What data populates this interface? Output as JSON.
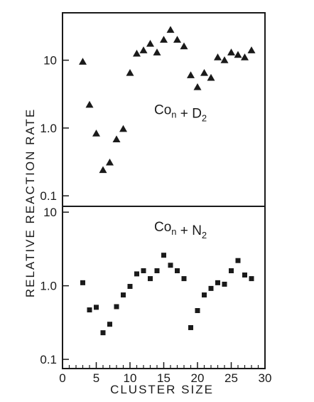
{
  "chart_data": {
    "type": "scatter",
    "ylabel": "RELATIVE REACTION RATE",
    "xlabel": "CLUSTER SIZE",
    "xlim": [
      0,
      30
    ],
    "x_ticks": [
      "0",
      "5",
      "10",
      "15",
      "20",
      "25",
      "30"
    ],
    "panels": [
      {
        "annotation": {
          "base": "Co",
          "sub": "n",
          "op": "+",
          "reactant": "D",
          "reactant_sub": "2"
        },
        "marker": "triangle",
        "color": "#1a1a1a",
        "yscale": "log",
        "ylim": [
          0.07,
          50
        ],
        "y_ticks": [
          "0.1",
          "1.0",
          "10"
        ],
        "x": [
          3,
          4,
          5,
          6,
          7,
          8,
          9,
          10,
          11,
          12,
          13,
          14,
          15,
          16,
          17,
          18,
          19,
          20,
          21,
          22,
          23,
          24,
          25,
          26,
          27,
          28
        ],
        "y": [
          9.5,
          2.2,
          0.83,
          0.24,
          0.31,
          0.68,
          0.97,
          6.5,
          12.5,
          14,
          17.5,
          13,
          20,
          28,
          20,
          16,
          6,
          4,
          6.5,
          5.5,
          11,
          10,
          13,
          12,
          11,
          14
        ]
      },
      {
        "annotation": {
          "base": "Co",
          "sub": "n",
          "op": "+",
          "reactant": "N",
          "reactant_sub": "2"
        },
        "marker": "square",
        "color": "#1a1a1a",
        "yscale": "log",
        "ylim": [
          0.075,
          12
        ],
        "y_ticks": [
          "0.1",
          "1.0",
          "10"
        ],
        "x": [
          3,
          4,
          5,
          6,
          7,
          8,
          9,
          10,
          11,
          12,
          13,
          14,
          15,
          16,
          17,
          18,
          19,
          20,
          21,
          22,
          23,
          24,
          25,
          26,
          27,
          28
        ],
        "y": [
          1.1,
          0.47,
          0.51,
          0.23,
          0.3,
          0.52,
          0.75,
          0.98,
          1.45,
          1.6,
          1.25,
          1.6,
          2.6,
          1.9,
          1.6,
          1.25,
          0.27,
          0.46,
          0.75,
          0.92,
          1.1,
          1.05,
          1.6,
          2.2,
          1.4,
          1.25
        ]
      }
    ]
  }
}
